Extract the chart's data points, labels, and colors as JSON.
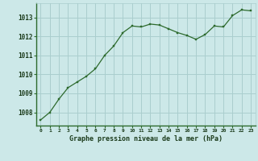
{
  "x": [
    0,
    1,
    2,
    3,
    4,
    5,
    6,
    7,
    8,
    9,
    10,
    11,
    12,
    13,
    14,
    15,
    16,
    17,
    18,
    19,
    20,
    21,
    22,
    23
  ],
  "y": [
    1007.6,
    1008.0,
    1008.7,
    1009.3,
    1009.6,
    1009.9,
    1010.3,
    1011.0,
    1011.5,
    1012.2,
    1012.55,
    1012.5,
    1012.65,
    1012.6,
    1012.4,
    1012.2,
    1012.05,
    1011.85,
    1012.1,
    1012.55,
    1012.5,
    1013.1,
    1013.4,
    1013.35
  ],
  "line_color": "#2d6a2d",
  "marker_color": "#2d6a2d",
  "bg_color": "#cce8e8",
  "grid_color": "#aacece",
  "xlabel": "Graphe pression niveau de la mer (hPa)",
  "xlabel_color": "#1a3a1a",
  "ytick_labels": [
    "1008",
    "1009",
    "1010",
    "1011",
    "1012",
    "1013"
  ],
  "ytick_values": [
    1008,
    1009,
    1010,
    1011,
    1012,
    1013
  ],
  "ylim": [
    1007.3,
    1013.75
  ],
  "xlim": [
    -0.5,
    23.5
  ],
  "xtick_values": [
    0,
    1,
    2,
    3,
    4,
    5,
    6,
    7,
    8,
    9,
    10,
    11,
    12,
    13,
    14,
    15,
    16,
    17,
    18,
    19,
    20,
    21,
    22,
    23
  ]
}
